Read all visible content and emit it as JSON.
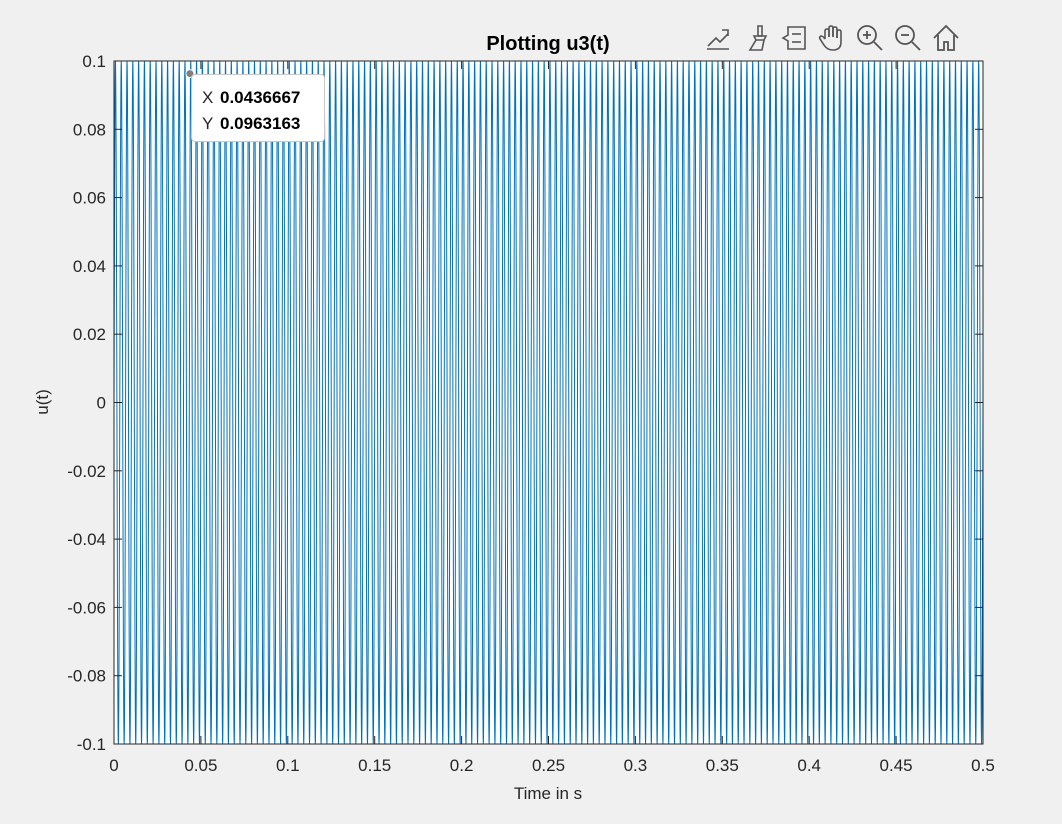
{
  "toolbar": {
    "buttons": [
      {
        "name": "export-icon"
      },
      {
        "name": "brush-icon"
      },
      {
        "name": "datatips-icon"
      },
      {
        "name": "pan-hand-icon"
      },
      {
        "name": "zoom-in-icon"
      },
      {
        "name": "zoom-out-icon"
      },
      {
        "name": "home-icon"
      }
    ]
  },
  "datatip": {
    "x_label": "X",
    "x_value": "0.0436667",
    "y_label": "Y",
    "y_value": "0.0963163"
  },
  "colors": {
    "line": "#0072bd",
    "axes_bg": "#ffffff",
    "figure_bg": "#f0f0f0"
  },
  "chart_data": {
    "type": "line",
    "title": "Plotting u3(t)",
    "xlabel": "Time in s",
    "ylabel": "u(t)",
    "xlim": [
      0,
      0.5
    ],
    "ylim": [
      -0.1,
      0.1
    ],
    "xticks": [
      "0",
      "0.05",
      "0.1",
      "0.15",
      "0.2",
      "0.25",
      "0.3",
      "0.35",
      "0.4",
      "0.45",
      "0.5"
    ],
    "yticks": [
      "-0.1",
      "-0.08",
      "-0.06",
      "-0.04",
      "-0.02",
      "0",
      "0.02",
      "0.04",
      "0.06",
      "0.08",
      "0.1"
    ],
    "signal": {
      "amplitude": 0.1,
      "frequency_hz": 300,
      "t_start": 0,
      "t_end": 0.5
    },
    "grid": false,
    "datatip_point": {
      "x": 0.0436667,
      "y": 0.0963163
    }
  }
}
